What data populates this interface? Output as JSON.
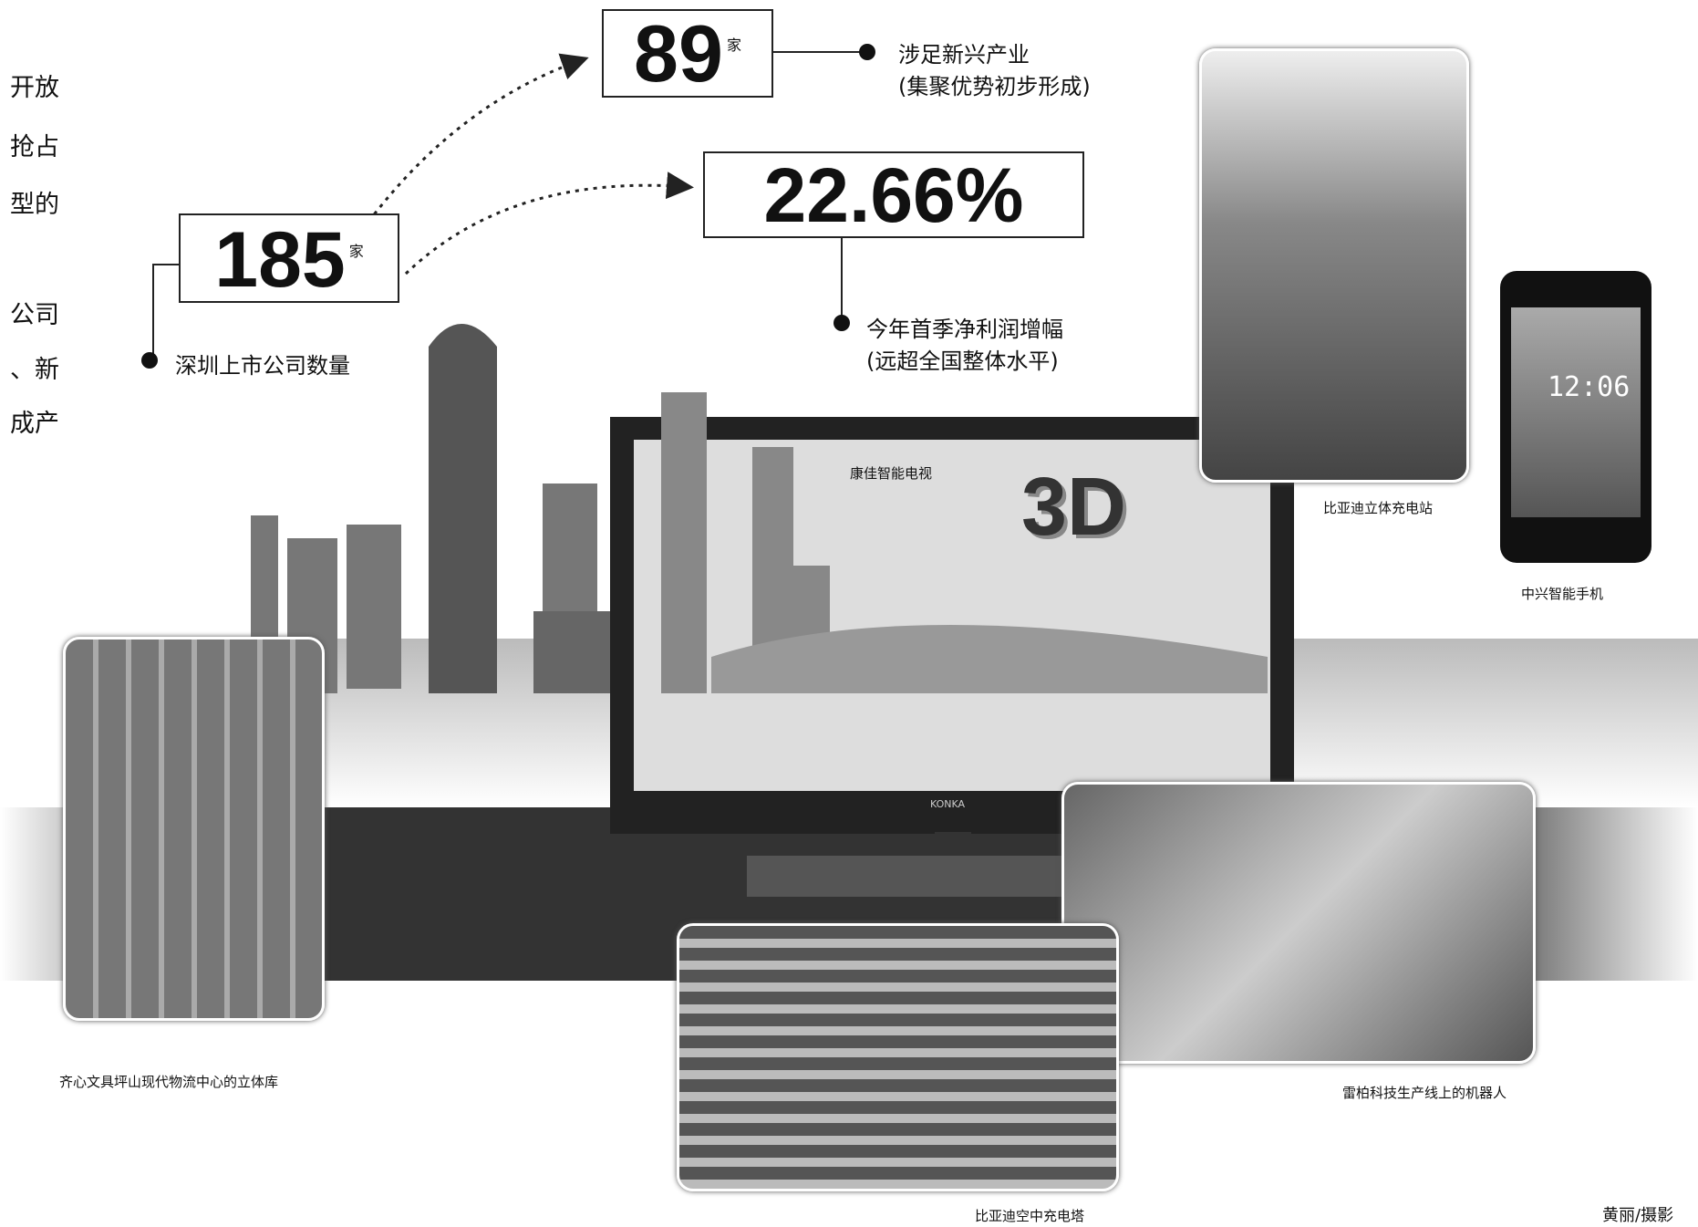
{
  "left_column": [
    "开放",
    "抢占",
    "型的",
    "公司",
    "、新",
    "成产"
  ],
  "stats": [
    {
      "value": "185",
      "unit": "家",
      "label": "深圳上市公司数量"
    },
    {
      "value": "89",
      "unit": "家",
      "label": "涉足新兴产业",
      "note": "(集聚优势初步形成)"
    },
    {
      "value": "22.66%",
      "label": "今年首季净利润增幅",
      "note": "(远超全国整体水平)"
    }
  ],
  "tv": {
    "caption": "康佳智能电视",
    "badge": "3D",
    "brand": "KONKA"
  },
  "phone": {
    "caption": "中兴智能手机",
    "time": "12:06"
  },
  "captions": {
    "tower": "比亚迪立体充电站",
    "warehouse": "齐心文具坪山现代物流中心的立体库",
    "robot": "雷柏科技生产线上的机器人",
    "building": "比亚迪空中充电塔"
  },
  "credit": "黄丽/摄影"
}
